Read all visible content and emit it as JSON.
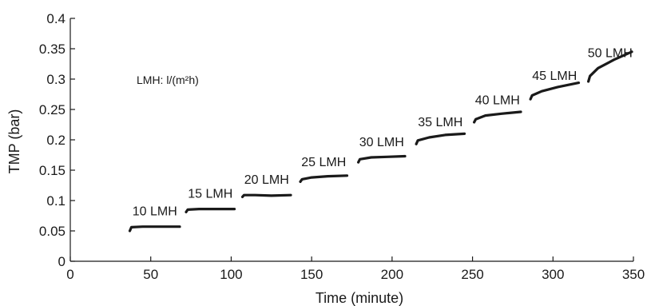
{
  "chart_data": {
    "type": "line",
    "title": "",
    "xlabel": "Time (minute)",
    "ylabel": "TMP (bar)",
    "xlim": [
      0,
      350
    ],
    "ylim": [
      0,
      0.4
    ],
    "xticks": [
      "0",
      "50",
      "100",
      "150",
      "200",
      "250",
      "300",
      "350"
    ],
    "yticks": [
      "0",
      "0.05",
      "0.1",
      "0.15",
      "0.2",
      "0.25",
      "0.3",
      "0.35",
      "0.4"
    ],
    "grid": false,
    "annotation": "LMH: l/(m²h)",
    "line_color": "#1a1a1a",
    "series": [
      {
        "label": "10 LMH",
        "x": [
          37,
          38,
          45,
          55,
          68
        ],
        "y": [
          0.05,
          0.056,
          0.057,
          0.057,
          0.057
        ]
      },
      {
        "label": "15 LMH",
        "x": [
          72,
          73,
          80,
          90,
          102
        ],
        "y": [
          0.081,
          0.085,
          0.086,
          0.086,
          0.086
        ]
      },
      {
        "label": "20 LMH",
        "x": [
          107,
          108,
          115,
          125,
          137
        ],
        "y": [
          0.106,
          0.109,
          0.109,
          0.108,
          0.109
        ]
      },
      {
        "label": "25 LMH",
        "x": [
          143,
          144,
          150,
          160,
          172
        ],
        "y": [
          0.131,
          0.135,
          0.138,
          0.14,
          0.141
        ]
      },
      {
        "label": "30 LMH",
        "x": [
          179,
          180,
          187,
          197,
          208
        ],
        "y": [
          0.163,
          0.168,
          0.171,
          0.172,
          0.173
        ]
      },
      {
        "label": "35 LMH",
        "x": [
          215,
          216,
          223,
          233,
          245
        ],
        "y": [
          0.193,
          0.199,
          0.204,
          0.208,
          0.21
        ]
      },
      {
        "label": "40 LMH",
        "x": [
          251,
          252,
          258,
          268,
          280
        ],
        "y": [
          0.229,
          0.234,
          0.24,
          0.243,
          0.246
        ]
      },
      {
        "label": "45 LMH",
        "x": [
          286,
          287,
          293,
          303,
          316
        ],
        "y": [
          0.267,
          0.273,
          0.28,
          0.287,
          0.294
        ]
      },
      {
        "label": "50 LMH",
        "x": [
          322,
          323,
          328,
          338,
          349
        ],
        "y": [
          0.296,
          0.305,
          0.318,
          0.332,
          0.345
        ]
      }
    ]
  }
}
